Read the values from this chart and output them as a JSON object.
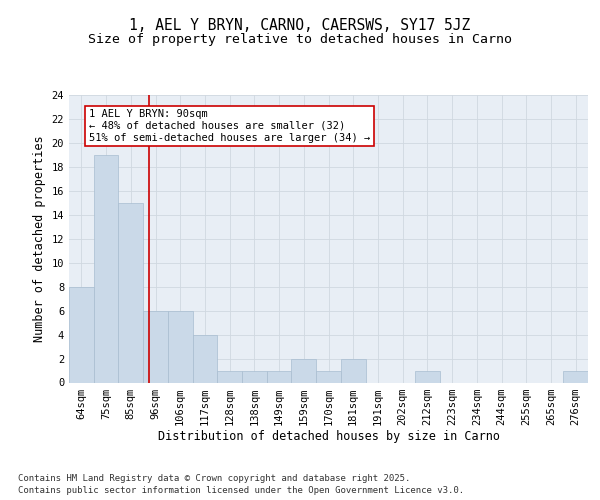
{
  "title": "1, AEL Y BRYN, CARNO, CAERSWS, SY17 5JZ",
  "subtitle": "Size of property relative to detached houses in Carno",
  "xlabel": "Distribution of detached houses by size in Carno",
  "ylabel": "Number of detached properties",
  "categories": [
    "64sqm",
    "75sqm",
    "85sqm",
    "96sqm",
    "106sqm",
    "117sqm",
    "128sqm",
    "138sqm",
    "149sqm",
    "159sqm",
    "170sqm",
    "181sqm",
    "191sqm",
    "202sqm",
    "212sqm",
    "223sqm",
    "234sqm",
    "244sqm",
    "255sqm",
    "265sqm",
    "276sqm"
  ],
  "values": [
    8,
    19,
    15,
    6,
    6,
    4,
    1,
    1,
    1,
    2,
    1,
    2,
    0,
    0,
    1,
    0,
    0,
    0,
    0,
    0,
    1
  ],
  "bar_color": "#cad9e8",
  "bar_edge_color": "#a8bdd0",
  "grid_color": "#d0d8e0",
  "background_color": "#e8eef5",
  "red_line_x": 2.75,
  "annotation_text": "1 AEL Y BRYN: 90sqm\n← 48% of detached houses are smaller (32)\n51% of semi-detached houses are larger (34) →",
  "annotation_box_facecolor": "#ffffff",
  "annotation_box_edge": "#cc0000",
  "ylim": [
    0,
    24
  ],
  "yticks": [
    0,
    2,
    4,
    6,
    8,
    10,
    12,
    14,
    16,
    18,
    20,
    22,
    24
  ],
  "footer": "Contains HM Land Registry data © Crown copyright and database right 2025.\nContains public sector information licensed under the Open Government Licence v3.0.",
  "title_fontsize": 10.5,
  "subtitle_fontsize": 9.5,
  "axis_label_fontsize": 8.5,
  "tick_fontsize": 7.5,
  "annotation_fontsize": 7.5,
  "footer_fontsize": 6.5
}
